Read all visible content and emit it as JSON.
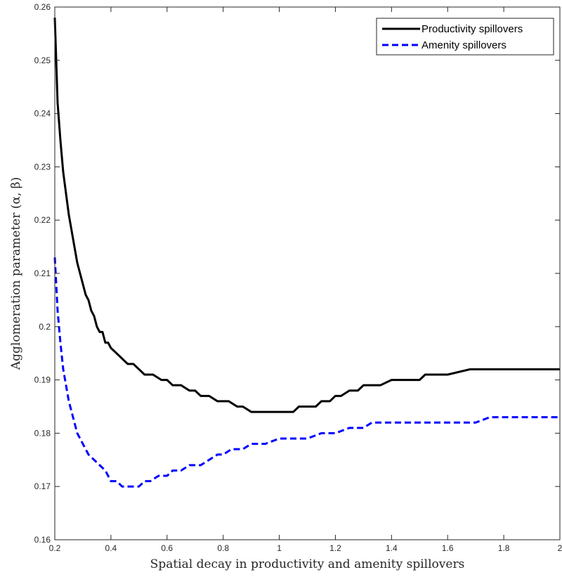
{
  "chart_data": {
    "type": "line",
    "xlabel": "Spatial decay in productivity and amenity spillovers",
    "ylabel": "Agglomeration parameter (α, β)",
    "xlim": [
      0.2,
      2.0
    ],
    "ylim": [
      0.16,
      0.26
    ],
    "x_ticks": [
      0.2,
      0.4,
      0.6,
      0.8,
      1.0,
      1.2,
      1.4,
      1.6,
      1.8,
      2.0
    ],
    "x_tick_labels": [
      "0.2",
      "0.4",
      "0.6",
      "0.8",
      "1",
      "1.2",
      "1.4",
      "1.6",
      "1.8",
      "2"
    ],
    "y_ticks": [
      0.16,
      0.17,
      0.18,
      0.19,
      0.2,
      0.21,
      0.22,
      0.23,
      0.24,
      0.25,
      0.26
    ],
    "y_tick_labels": [
      "0.16",
      "0.17",
      "0.18",
      "0.19",
      "0.2",
      "0.21",
      "0.22",
      "0.23",
      "0.24",
      "0.25",
      "0.26"
    ],
    "grid": false,
    "legend_position": "top-right",
    "series": [
      {
        "name": "Productivity spillovers",
        "color": "#000000",
        "style": "solid",
        "x": [
          0.2,
          0.21,
          0.22,
          0.23,
          0.24,
          0.25,
          0.26,
          0.27,
          0.28,
          0.29,
          0.3,
          0.31,
          0.32,
          0.33,
          0.34,
          0.35,
          0.36,
          0.37,
          0.38,
          0.39,
          0.4,
          0.42,
          0.44,
          0.46,
          0.48,
          0.5,
          0.52,
          0.55,
          0.58,
          0.6,
          0.62,
          0.65,
          0.68,
          0.7,
          0.72,
          0.75,
          0.78,
          0.8,
          0.82,
          0.85,
          0.87,
          0.9,
          0.95,
          1.0,
          1.05,
          1.07,
          1.1,
          1.13,
          1.15,
          1.18,
          1.2,
          1.22,
          1.25,
          1.28,
          1.3,
          1.33,
          1.36,
          1.4,
          1.45,
          1.5,
          1.52,
          1.6,
          1.68,
          1.75,
          1.85,
          2.0
        ],
        "y": [
          0.258,
          0.242,
          0.235,
          0.229,
          0.225,
          0.221,
          0.218,
          0.215,
          0.212,
          0.21,
          0.208,
          0.206,
          0.205,
          0.203,
          0.202,
          0.2,
          0.199,
          0.199,
          0.197,
          0.197,
          0.196,
          0.195,
          0.194,
          0.193,
          0.193,
          0.192,
          0.191,
          0.191,
          0.19,
          0.19,
          0.189,
          0.189,
          0.188,
          0.188,
          0.187,
          0.187,
          0.186,
          0.186,
          0.186,
          0.185,
          0.185,
          0.184,
          0.184,
          0.184,
          0.184,
          0.185,
          0.185,
          0.185,
          0.186,
          0.186,
          0.187,
          0.187,
          0.188,
          0.188,
          0.189,
          0.189,
          0.189,
          0.19,
          0.19,
          0.19,
          0.191,
          0.191,
          0.192,
          0.192,
          0.192,
          0.192
        ]
      },
      {
        "name": "Amenity spillovers",
        "color": "#0000ff",
        "style": "dashed",
        "x": [
          0.2,
          0.21,
          0.22,
          0.23,
          0.24,
          0.25,
          0.26,
          0.27,
          0.28,
          0.29,
          0.3,
          0.32,
          0.34,
          0.36,
          0.38,
          0.4,
          0.42,
          0.44,
          0.46,
          0.48,
          0.5,
          0.52,
          0.54,
          0.57,
          0.6,
          0.62,
          0.65,
          0.68,
          0.72,
          0.75,
          0.78,
          0.8,
          0.83,
          0.87,
          0.9,
          0.95,
          1.0,
          1.05,
          1.1,
          1.15,
          1.2,
          1.25,
          1.3,
          1.33,
          1.4,
          1.5,
          1.6,
          1.7,
          1.75,
          1.85,
          2.0
        ],
        "y": [
          0.213,
          0.203,
          0.197,
          0.192,
          0.189,
          0.186,
          0.184,
          0.182,
          0.18,
          0.179,
          0.178,
          0.176,
          0.175,
          0.174,
          0.173,
          0.171,
          0.171,
          0.17,
          0.17,
          0.17,
          0.17,
          0.171,
          0.171,
          0.172,
          0.172,
          0.173,
          0.173,
          0.174,
          0.174,
          0.175,
          0.176,
          0.176,
          0.177,
          0.177,
          0.178,
          0.178,
          0.179,
          0.179,
          0.179,
          0.18,
          0.18,
          0.181,
          0.181,
          0.182,
          0.182,
          0.182,
          0.182,
          0.182,
          0.183,
          0.183,
          0.183
        ]
      }
    ]
  }
}
